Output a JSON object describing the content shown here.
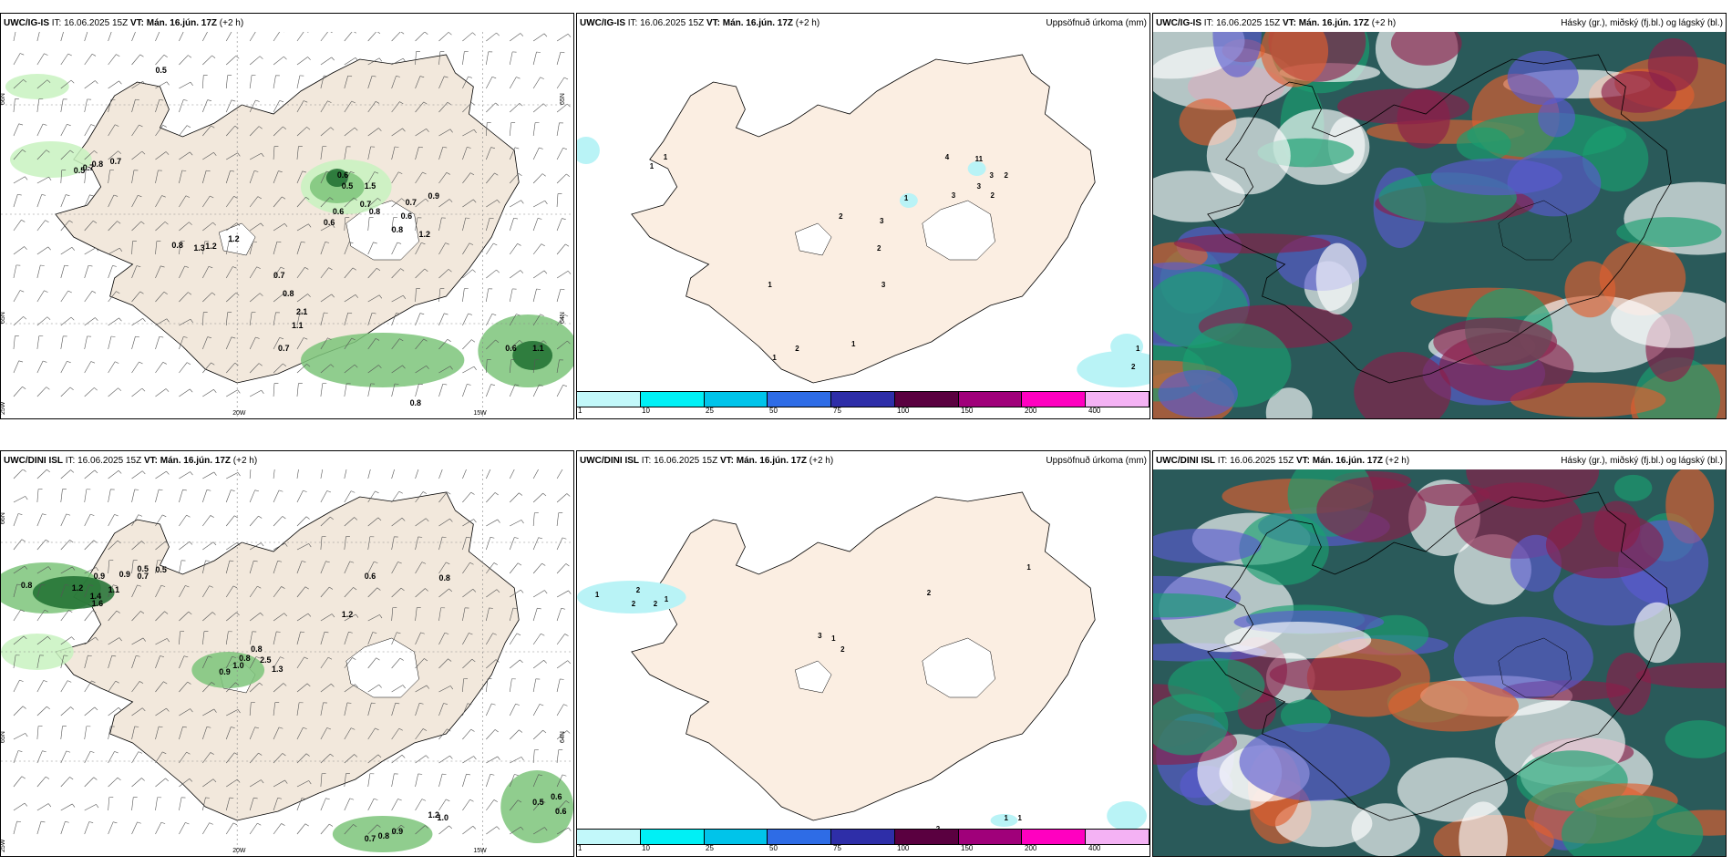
{
  "panels": [
    {
      "row": 0,
      "col": 0,
      "model": "UWC/IG-IS",
      "it_label": "IT:",
      "it_value": "16.06.2025 15Z",
      "vt_label": "VT:",
      "vt_value": "Mán. 16.jún. 17Z",
      "lead": "(+2 h)",
      "title_right": "",
      "type": "wind-precip",
      "values": [
        "0.5",
        "0.5",
        "0.7",
        "0.8",
        "0.7",
        "0.8",
        "1.3",
        "1.2",
        "1.2",
        "0.6",
        "0.5",
        "1.5",
        "0.7",
        "0.8",
        "0.6",
        "0.6",
        "0.9",
        "0.7",
        "0.6",
        "0.8",
        "1.2",
        "0.7",
        "0.8",
        "2.1",
        "1.1",
        "0.7",
        "0.6",
        "1.1",
        "0.7",
        "0.7",
        "0.8",
        "0.5"
      ],
      "lat_labels": [
        "66N",
        "65N",
        "25W",
        "65N",
        "64N"
      ],
      "lon_labels": [
        "20W",
        "15W"
      ]
    },
    {
      "row": 0,
      "col": 1,
      "model": "UWC/IG-IS",
      "it_label": "IT:",
      "it_value": "16.06.2025 15Z",
      "vt_label": "VT:",
      "vt_value": "Mán. 16.jún. 17Z",
      "lead": "(+2 h)",
      "title_right": "Uppsöfnuð úrkoma (mm)",
      "type": "precip",
      "values": [
        "1",
        "1",
        "2",
        "3",
        "4",
        "11",
        "2",
        "3",
        "3",
        "1",
        "3",
        "2",
        "2",
        "3",
        "1",
        "1",
        "2",
        "1",
        "2",
        "1"
      ],
      "legend_ticks": [
        "1",
        "10",
        "25",
        "50",
        "75",
        "100",
        "150",
        "200",
        "400"
      ]
    },
    {
      "row": 0,
      "col": 2,
      "model": "UWC/IG-IS",
      "it_label": "IT:",
      "it_value": "16.06.2025 15Z",
      "vt_label": "VT:",
      "vt_value": "Mán. 16.jún. 17Z",
      "lead": "(+2 h)",
      "title_right": "Hásky (gr.), miðský (fj.bl.) og lágský (bl.)",
      "type": "cloud"
    },
    {
      "row": 1,
      "col": 0,
      "model": "UWC/DINI ISL",
      "it_label": "IT:",
      "it_value": "16.06.2025 15Z",
      "vt_label": "VT:",
      "vt_value": "Mán. 16.jún. 17Z",
      "lead": "(+2 h)",
      "title_right": "",
      "type": "wind-precip",
      "values": [
        "0.8",
        "1.2",
        "1.4",
        "1.1",
        "1.6",
        "0.9",
        "0.9",
        "0.5",
        "0.5",
        "0.7",
        "0.6",
        "0.8",
        "1.2",
        "0.8",
        "0.8",
        "2.5",
        "0.9",
        "1.0",
        "1.3",
        "0.5",
        "0.6",
        "0.6",
        "1.2",
        "1.0",
        "0.7",
        "0.8",
        "0.9"
      ],
      "lat_labels": [
        "66N",
        "65N",
        "25W",
        "64N"
      ],
      "lon_labels": [
        "20W",
        "15W"
      ]
    },
    {
      "row": 1,
      "col": 1,
      "model": "UWC/DINI ISL",
      "it_label": "IT:",
      "it_value": "16.06.2025 15Z",
      "vt_label": "VT:",
      "vt_value": "Mán. 16.jún. 17Z",
      "lead": "(+2 h)",
      "title_right": "Uppsöfnuð úrkoma (mm)",
      "type": "precip",
      "values": [
        "1",
        "2",
        "2",
        "2",
        "1",
        "2",
        "1",
        "3",
        "1",
        "2",
        "2",
        "1",
        "1"
      ],
      "legend_ticks": [
        "1",
        "10",
        "25",
        "50",
        "75",
        "100",
        "150",
        "200",
        "400"
      ]
    },
    {
      "row": 1,
      "col": 2,
      "model": "UWC/DINI ISL",
      "it_label": "IT:",
      "it_value": "16.06.2025 15Z",
      "vt_label": "VT:",
      "vt_value": "Mán. 16.jún. 17Z",
      "lead": "(+2 h)",
      "title_right": "Hásky (gr.), miðský (fj.bl.) og lágský (bl.)",
      "type": "cloud"
    }
  ],
  "colors": {
    "land": "#f2e8dc",
    "land_precip": "#fbeee2",
    "precip_light": "#c8f2c0",
    "precip_mid": "#7cc47a",
    "precip_dark": "#1f6e30",
    "precip_map_cyan": "#b9f3f6",
    "legend": [
      "#c2f8fa",
      "#00f0f5",
      "#00c4ea",
      "#2e6ce6",
      "#2e2ea8",
      "#5a0040",
      "#a0007a",
      "#ff00c0",
      "#f4b2f4"
    ],
    "cloud_green": "#1aa070",
    "cloud_blue": "#5a5ad0",
    "cloud_red": "#8a1f4a",
    "cloud_dark": "#2a5a5a"
  }
}
